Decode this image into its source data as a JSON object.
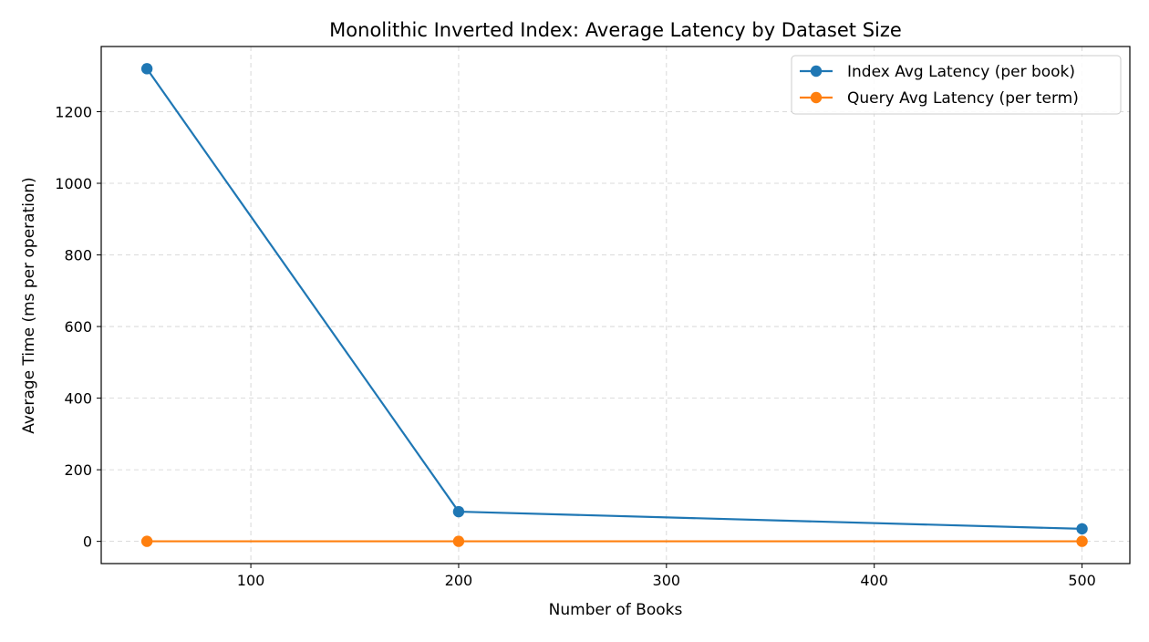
{
  "chart_data": {
    "type": "line",
    "title": "Monolithic Inverted Index: Average Latency by Dataset Size",
    "xlabel": "Number of Books",
    "ylabel": "Average Time (ms per operation)",
    "xlim": [
      28,
      523
    ],
    "ylim": [
      -62,
      1382
    ],
    "xticks": [
      100,
      200,
      300,
      400,
      500
    ],
    "yticks": [
      0,
      200,
      400,
      600,
      800,
      1000,
      1200
    ],
    "x": [
      50,
      200,
      500
    ],
    "grid": true,
    "legend_position": "top-right",
    "series": [
      {
        "name": "Index Avg Latency (per book)",
        "color": "#1f77b4",
        "values": [
          1320,
          83,
          35
        ]
      },
      {
        "name": "Query Avg Latency (per term)",
        "color": "#ff7f0e",
        "values": [
          0.2,
          0.2,
          0.2
        ]
      }
    ]
  }
}
